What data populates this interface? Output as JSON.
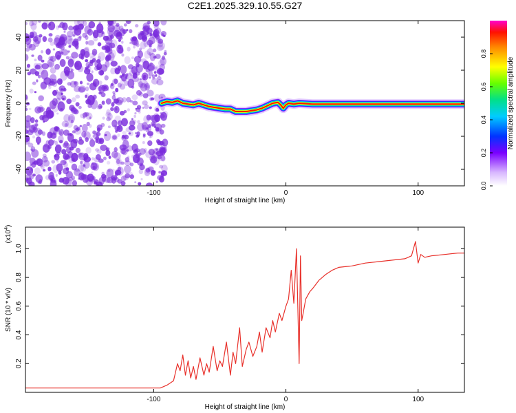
{
  "title": "C2E1.2025.329.10.55.G27",
  "colors": {
    "snr_line": "#e8302a",
    "frame": "#000000",
    "spectro_dots": "#7a2bdc"
  },
  "colorbar": {
    "label": "Normalized spectral amplitude",
    "ticks": [
      "0.0",
      "0.2",
      "0.4",
      "0.6",
      "0.8"
    ],
    "range": [
      0,
      1
    ]
  },
  "chart_data": [
    {
      "type": "heatmap",
      "title": "",
      "xlabel": "Height of straight line (km)",
      "ylabel": "Frequency (Hz)",
      "xlim": [
        -197,
        135
      ],
      "ylim": [
        -50,
        50
      ],
      "xticks": [
        "-100",
        "0",
        "100"
      ],
      "yticks": [
        "40",
        "20",
        "0",
        "-20",
        "-40"
      ],
      "noise_region_x": [
        -197,
        -94
      ],
      "ridge": {
        "x": [
          -94,
          -90,
          -86,
          -82,
          -78,
          -74,
          -70,
          -66,
          -62,
          -58,
          -54,
          -50,
          -46,
          -42,
          -38,
          -34,
          -30,
          -26,
          -22,
          -18,
          -14,
          -10,
          -6,
          -4,
          -2,
          0,
          2,
          6,
          10,
          20,
          40,
          60,
          80,
          100,
          120,
          135
        ],
        "y": [
          0,
          1,
          0.5,
          1.5,
          0,
          -0.5,
          -1,
          0,
          -1,
          -2,
          -2.5,
          -3,
          -3.5,
          -3.5,
          -5,
          -5,
          -5,
          -4.5,
          -4,
          -3,
          -1.5,
          0,
          0.5,
          -1,
          -3,
          -1,
          0,
          -0.5,
          0,
          -0.5,
          -0.5,
          -0.5,
          -0.5,
          -0.5,
          -0.5,
          -0.5
        ]
      }
    },
    {
      "type": "line",
      "title": "",
      "xlabel": "Height of straight line (km)",
      "ylabel": "SNR (10 * v/v)",
      "y_multiplier": "(x10",
      "y_multiplier_exp": "4",
      "y_multiplier_close": ")",
      "xlim": [
        -197,
        135
      ],
      "ylim": [
        0,
        1.15
      ],
      "xticks": [
        "-100",
        "0",
        "100"
      ],
      "yticks": [
        "0.2",
        "0.4",
        "0.6",
        "0.8",
        "1.0"
      ],
      "series": [
        {
          "x": [
            -197,
            -150,
            -120,
            -95,
            -90,
            -85,
            -82,
            -80,
            -78,
            -76,
            -74,
            -72,
            -70,
            -68,
            -65,
            -62,
            -60,
            -58,
            -55,
            -52,
            -50,
            -48,
            -45,
            -42,
            -40,
            -38,
            -35,
            -33,
            -30,
            -28,
            -25,
            -22,
            -20,
            -18,
            -15,
            -12,
            -10,
            -8,
            -5,
            -3,
            0,
            2,
            4,
            6,
            8,
            10,
            11,
            12,
            13,
            15,
            18,
            20,
            25,
            30,
            35,
            40,
            50,
            60,
            70,
            80,
            90,
            95,
            98,
            100,
            102,
            105,
            110,
            120,
            130,
            135
          ],
          "y": [
            0.03,
            0.03,
            0.03,
            0.03,
            0.05,
            0.08,
            0.2,
            0.15,
            0.26,
            0.12,
            0.22,
            0.1,
            0.18,
            0.09,
            0.24,
            0.12,
            0.2,
            0.14,
            0.32,
            0.15,
            0.22,
            0.18,
            0.35,
            0.12,
            0.28,
            0.2,
            0.45,
            0.18,
            0.3,
            0.35,
            0.25,
            0.32,
            0.42,
            0.28,
            0.45,
            0.38,
            0.5,
            0.42,
            0.55,
            0.5,
            0.6,
            0.65,
            0.85,
            0.62,
            1.0,
            0.2,
            0.95,
            0.5,
            0.55,
            0.65,
            0.7,
            0.72,
            0.78,
            0.82,
            0.85,
            0.87,
            0.88,
            0.9,
            0.91,
            0.92,
            0.93,
            0.95,
            1.05,
            0.9,
            0.96,
            0.94,
            0.95,
            0.96,
            0.97,
            0.97
          ]
        }
      ]
    }
  ]
}
